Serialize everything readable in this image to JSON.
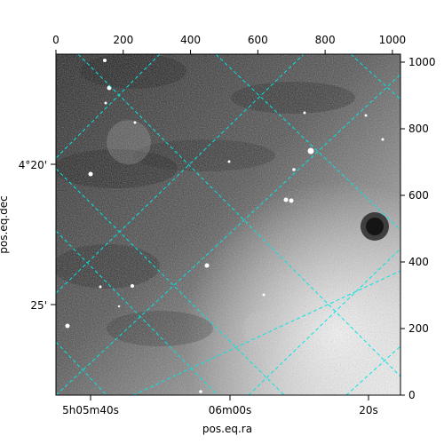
{
  "figure": {
    "xlabel": "pos.eq.ra",
    "ylabel": "pos.eq.dec",
    "pixel_axis_bottom_ticks": [
      "0",
      "200",
      "400",
      "600",
      "800",
      "1000"
    ],
    "pixel_axis_right_ticks": [
      "0",
      "200",
      "400",
      "600",
      "800",
      "1000"
    ],
    "ra_ticks": [
      "5h05m40s",
      "06m00s",
      "20s"
    ],
    "dec_ticks": [
      "4°20'",
      "25'"
    ],
    "grid_color": "#00e5e5",
    "image_style": "grayscale astronomical image with noise and bright point sources"
  }
}
